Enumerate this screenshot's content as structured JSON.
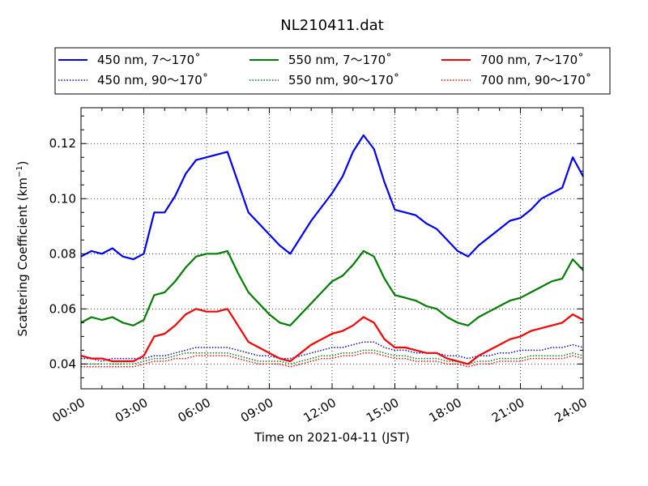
{
  "chart_data": {
    "type": "line",
    "title": "NL210411.dat",
    "xlabel": "Time on 2021-04-11 (JST)",
    "ylabel": "Scattering Coefficient (km⁻¹)",
    "ylabel_main": "Scattering Coefficient (km",
    "ylabel_sup": "−1",
    "ylabel_close": ")",
    "xlim": [
      0,
      24
    ],
    "ylim": [
      0.031,
      0.133
    ],
    "grid": true,
    "legend_position": "top",
    "x_tick_labels": [
      "00:00",
      "03:00",
      "06:00",
      "09:00",
      "12:00",
      "15:00",
      "18:00",
      "21:00",
      "24:00"
    ],
    "x_tick_values": [
      0,
      3,
      6,
      9,
      12,
      15,
      18,
      21,
      24
    ],
    "y_tick_labels": [
      "0.04",
      "0.06",
      "0.08",
      "0.10",
      "0.12"
    ],
    "y_tick_values": [
      0.04,
      0.06,
      0.08,
      0.1,
      0.12
    ],
    "x": [
      0,
      0.5,
      1,
      1.5,
      2,
      2.5,
      3,
      3.5,
      4,
      4.5,
      5,
      5.5,
      6,
      6.5,
      7,
      7.5,
      8,
      8.5,
      9,
      9.5,
      10,
      10.5,
      11,
      11.5,
      12,
      12.5,
      13,
      13.5,
      14,
      14.5,
      15,
      15.5,
      16,
      16.5,
      17,
      17.5,
      18,
      18.5,
      19,
      19.5,
      20,
      20.5,
      21,
      21.5,
      22,
      22.5,
      23,
      23.5,
      24
    ],
    "series": [
      {
        "name": "450 nm, 7～170˚",
        "color": "#0000ff",
        "style": "solid",
        "values": [
          0.079,
          0.081,
          0.08,
          0.082,
          0.079,
          0.078,
          0.08,
          0.095,
          0.095,
          0.101,
          0.109,
          0.114,
          0.115,
          0.116,
          0.117,
          0.106,
          0.095,
          0.091,
          0.087,
          0.083,
          0.08,
          0.086,
          0.092,
          0.097,
          0.102,
          0.108,
          0.117,
          0.123,
          0.118,
          0.106,
          0.096,
          0.095,
          0.094,
          0.091,
          0.089,
          0.085,
          0.081,
          0.079,
          0.083,
          0.086,
          0.089,
          0.092,
          0.093,
          0.096,
          0.1,
          0.102,
          0.104,
          0.115,
          0.108
        ]
      },
      {
        "name": "550 nm, 7～170˚",
        "color": "#008000",
        "style": "solid",
        "values": [
          0.055,
          0.057,
          0.056,
          0.057,
          0.055,
          0.054,
          0.056,
          0.065,
          0.066,
          0.07,
          0.075,
          0.079,
          0.08,
          0.08,
          0.081,
          0.073,
          0.066,
          0.062,
          0.058,
          0.055,
          0.054,
          0.058,
          0.062,
          0.066,
          0.07,
          0.072,
          0.076,
          0.081,
          0.079,
          0.071,
          0.065,
          0.064,
          0.063,
          0.061,
          0.06,
          0.057,
          0.055,
          0.054,
          0.057,
          0.059,
          0.061,
          0.063,
          0.064,
          0.066,
          0.068,
          0.07,
          0.071,
          0.078,
          0.074
        ]
      },
      {
        "name": "700 nm, 7～170˚",
        "color": "#ff0000",
        "style": "solid",
        "values": [
          0.043,
          0.042,
          0.042,
          0.041,
          0.041,
          0.041,
          0.043,
          0.05,
          0.051,
          0.054,
          0.058,
          0.06,
          0.059,
          0.059,
          0.06,
          0.054,
          0.048,
          0.046,
          0.044,
          0.042,
          0.041,
          0.044,
          0.047,
          0.049,
          0.051,
          0.052,
          0.054,
          0.057,
          0.055,
          0.049,
          0.046,
          0.046,
          0.045,
          0.044,
          0.044,
          0.042,
          0.041,
          0.04,
          0.043,
          0.045,
          0.047,
          0.049,
          0.05,
          0.052,
          0.053,
          0.054,
          0.055,
          0.058,
          0.056
        ]
      },
      {
        "name": "450 nm, 90～170˚",
        "color": "#0000ff",
        "style": "dotted",
        "values": [
          0.042,
          0.042,
          0.041,
          0.042,
          0.042,
          0.042,
          0.042,
          0.043,
          0.043,
          0.044,
          0.045,
          0.046,
          0.046,
          0.046,
          0.046,
          0.045,
          0.044,
          0.043,
          0.043,
          0.042,
          0.042,
          0.043,
          0.044,
          0.045,
          0.046,
          0.046,
          0.047,
          0.048,
          0.048,
          0.046,
          0.045,
          0.045,
          0.044,
          0.044,
          0.044,
          0.043,
          0.043,
          0.042,
          0.043,
          0.043,
          0.044,
          0.044,
          0.045,
          0.045,
          0.045,
          0.046,
          0.046,
          0.047,
          0.046
        ]
      },
      {
        "name": "550 nm, 90～170˚",
        "color": "#008000",
        "style": "dotted",
        "values": [
          0.04,
          0.04,
          0.04,
          0.04,
          0.04,
          0.04,
          0.041,
          0.042,
          0.042,
          0.043,
          0.044,
          0.044,
          0.044,
          0.044,
          0.044,
          0.043,
          0.042,
          0.041,
          0.041,
          0.041,
          0.04,
          0.041,
          0.042,
          0.043,
          0.043,
          0.044,
          0.044,
          0.045,
          0.045,
          0.044,
          0.043,
          0.043,
          0.042,
          0.042,
          0.042,
          0.041,
          0.041,
          0.04,
          0.041,
          0.041,
          0.042,
          0.042,
          0.042,
          0.043,
          0.043,
          0.043,
          0.043,
          0.044,
          0.043
        ]
      },
      {
        "name": "700 nm, 90～170˚",
        "color": "#ff0000",
        "style": "dotted",
        "values": [
          0.039,
          0.039,
          0.039,
          0.039,
          0.039,
          0.039,
          0.04,
          0.041,
          0.041,
          0.042,
          0.042,
          0.043,
          0.043,
          0.043,
          0.043,
          0.042,
          0.041,
          0.04,
          0.04,
          0.04,
          0.039,
          0.04,
          0.041,
          0.042,
          0.042,
          0.043,
          0.043,
          0.044,
          0.044,
          0.043,
          0.042,
          0.042,
          0.041,
          0.041,
          0.041,
          0.04,
          0.04,
          0.039,
          0.04,
          0.04,
          0.041,
          0.041,
          0.041,
          0.042,
          0.042,
          0.042,
          0.042,
          0.043,
          0.042
        ]
      }
    ],
    "legend_order": [
      0,
      1,
      2,
      3,
      4,
      5
    ]
  }
}
